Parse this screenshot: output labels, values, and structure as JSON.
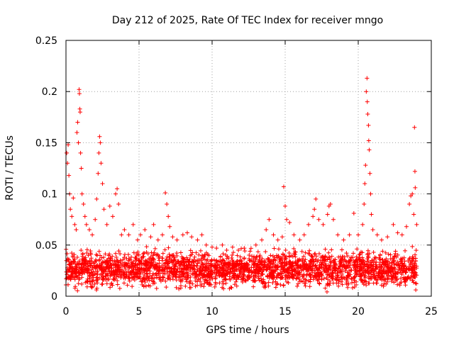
{
  "chart_data": {
    "type": "scatter",
    "title": "Day 212 of 2025, Rate Of TEC Index for receiver mngo",
    "xlabel": "GPS time / hours",
    "ylabel": "ROTI / TECUs",
    "xlim": [
      0,
      25
    ],
    "ylim": [
      0,
      0.25
    ],
    "x_ticks": [
      {
        "value": 0,
        "label": "0"
      },
      {
        "value": 5,
        "label": "5"
      },
      {
        "value": 10,
        "label": "10"
      },
      {
        "value": 15,
        "label": "15"
      },
      {
        "value": 20,
        "label": "20"
      },
      {
        "value": 25,
        "label": "25"
      }
    ],
    "y_ticks": [
      {
        "value": 0,
        "label": "0"
      },
      {
        "value": 0.05,
        "label": "0.05"
      },
      {
        "value": 0.1,
        "label": "0.1"
      },
      {
        "value": 0.15,
        "label": "0.15"
      },
      {
        "value": 0.2,
        "label": "0.2"
      },
      {
        "value": 0.25,
        "label": "0.25"
      }
    ],
    "grid": true,
    "marker": "+",
    "series": [
      {
        "name": "ROTI",
        "color": "#ff0000",
        "band": {
          "x_range": [
            0,
            24
          ],
          "y_range": [
            0.003,
            0.05
          ],
          "count": 2600,
          "seed": 212
        },
        "points": [
          [
            0.05,
            0.14
          ],
          [
            0.1,
            0.13
          ],
          [
            0.15,
            0.148
          ],
          [
            0.2,
            0.118
          ],
          [
            0.25,
            0.1
          ],
          [
            0.3,
            0.085
          ],
          [
            0.4,
            0.078
          ],
          [
            0.5,
            0.096
          ],
          [
            0.6,
            0.07
          ],
          [
            0.7,
            0.065
          ],
          [
            0.75,
            0.16
          ],
          [
            0.8,
            0.17
          ],
          [
            0.85,
            0.15
          ],
          [
            0.9,
            0.202
          ],
          [
            0.92,
            0.198
          ],
          [
            0.95,
            0.183
          ],
          [
            0.97,
            0.18
          ],
          [
            1.0,
            0.14
          ],
          [
            1.05,
            0.125
          ],
          [
            1.1,
            0.1
          ],
          [
            1.2,
            0.09
          ],
          [
            1.3,
            0.078
          ],
          [
            1.4,
            0.07
          ],
          [
            1.6,
            0.065
          ],
          [
            1.8,
            0.06
          ],
          [
            2.0,
            0.075
          ],
          [
            2.1,
            0.095
          ],
          [
            2.2,
            0.12
          ],
          [
            2.25,
            0.14
          ],
          [
            2.3,
            0.156
          ],
          [
            2.35,
            0.15
          ],
          [
            2.4,
            0.13
          ],
          [
            2.5,
            0.11
          ],
          [
            2.6,
            0.085
          ],
          [
            2.8,
            0.07
          ],
          [
            3.0,
            0.088
          ],
          [
            3.2,
            0.078
          ],
          [
            3.4,
            0.1
          ],
          [
            3.5,
            0.105
          ],
          [
            3.6,
            0.09
          ],
          [
            3.8,
            0.06
          ],
          [
            4.0,
            0.065
          ],
          [
            4.3,
            0.06
          ],
          [
            4.6,
            0.07
          ],
          [
            4.9,
            0.055
          ],
          [
            5.1,
            0.06
          ],
          [
            5.4,
            0.065
          ],
          [
            5.8,
            0.058
          ],
          [
            6.0,
            0.07
          ],
          [
            6.3,
            0.055
          ],
          [
            6.6,
            0.06
          ],
          [
            6.8,
            0.101
          ],
          [
            6.9,
            0.09
          ],
          [
            7.0,
            0.078
          ],
          [
            7.1,
            0.068
          ],
          [
            7.3,
            0.058
          ],
          [
            7.6,
            0.055
          ],
          [
            8.0,
            0.06
          ],
          [
            8.3,
            0.062
          ],
          [
            8.6,
            0.058
          ],
          [
            9.0,
            0.055
          ],
          [
            9.3,
            0.06
          ],
          [
            9.6,
            0.05
          ],
          [
            10.0,
            0.048
          ],
          [
            10.3,
            0.047
          ],
          [
            10.7,
            0.05
          ],
          [
            11.0,
            0.045
          ],
          [
            11.4,
            0.048
          ],
          [
            11.8,
            0.045
          ],
          [
            12.2,
            0.047
          ],
          [
            12.6,
            0.044
          ],
          [
            13.0,
            0.05
          ],
          [
            13.4,
            0.055
          ],
          [
            13.7,
            0.065
          ],
          [
            13.9,
            0.075
          ],
          [
            14.2,
            0.06
          ],
          [
            14.5,
            0.055
          ],
          [
            14.8,
            0.058
          ],
          [
            14.9,
            0.107
          ],
          [
            15.0,
            0.088
          ],
          [
            15.1,
            0.075
          ],
          [
            15.3,
            0.072
          ],
          [
            15.6,
            0.06
          ],
          [
            16.0,
            0.055
          ],
          [
            16.3,
            0.06
          ],
          [
            16.6,
            0.07
          ],
          [
            16.9,
            0.078
          ],
          [
            17.0,
            0.085
          ],
          [
            17.1,
            0.095
          ],
          [
            17.3,
            0.075
          ],
          [
            17.6,
            0.07
          ],
          [
            17.9,
            0.08
          ],
          [
            18.0,
            0.088
          ],
          [
            18.1,
            0.09
          ],
          [
            18.3,
            0.075
          ],
          [
            18.6,
            0.06
          ],
          [
            19.0,
            0.055
          ],
          [
            19.4,
            0.06
          ],
          [
            19.7,
            0.081
          ],
          [
            20.0,
            0.06
          ],
          [
            20.3,
            0.07
          ],
          [
            20.4,
            0.09
          ],
          [
            20.45,
            0.11
          ],
          [
            20.5,
            0.128
          ],
          [
            20.55,
            0.2
          ],
          [
            20.6,
            0.213
          ],
          [
            20.62,
            0.19
          ],
          [
            20.65,
            0.178
          ],
          [
            20.7,
            0.167
          ],
          [
            20.72,
            0.152
          ],
          [
            20.75,
            0.143
          ],
          [
            20.8,
            0.12
          ],
          [
            20.85,
            0.1
          ],
          [
            20.9,
            0.08
          ],
          [
            21.0,
            0.065
          ],
          [
            21.3,
            0.06
          ],
          [
            21.6,
            0.055
          ],
          [
            22.0,
            0.058
          ],
          [
            22.4,
            0.07
          ],
          [
            22.7,
            0.062
          ],
          [
            23.0,
            0.06
          ],
          [
            23.3,
            0.068
          ],
          [
            23.5,
            0.09
          ],
          [
            23.6,
            0.098
          ],
          [
            23.7,
            0.1
          ],
          [
            23.8,
            0.08
          ],
          [
            23.85,
            0.165
          ],
          [
            23.88,
            0.122
          ],
          [
            23.9,
            0.106
          ],
          [
            24.0,
            0.07
          ]
        ]
      }
    ]
  }
}
